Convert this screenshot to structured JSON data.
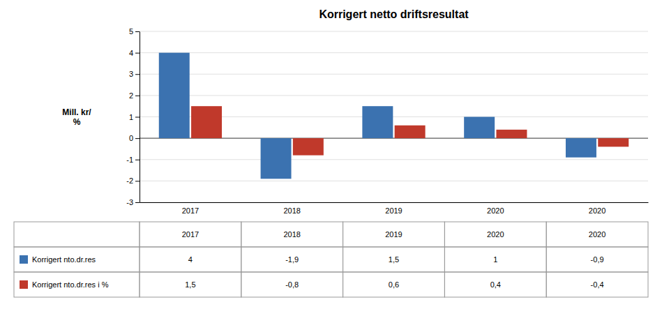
{
  "chart_data": {
    "type": "bar",
    "title": "Korrigert netto driftsresultat",
    "ylabel": "Mill. kr/\n%",
    "categories": [
      "2017",
      "2018",
      "2019",
      "2020",
      "2020"
    ],
    "series": [
      {
        "name": "Korrigert nto.dr.res",
        "color": "#3b72b0",
        "values": [
          4,
          -1.9,
          1.5,
          1,
          -0.9
        ],
        "value_labels": [
          "4",
          "-1,9",
          "1,5",
          "1",
          "-0,9"
        ]
      },
      {
        "name": "Korrigert nto.dr.res i %",
        "color": "#c0392b",
        "values": [
          1.5,
          -0.8,
          0.6,
          0.4,
          -0.4
        ],
        "value_labels": [
          "1,5",
          "-0,8",
          "0,6",
          "0,4",
          "-0,4"
        ]
      }
    ],
    "ylim": [
      -3,
      5
    ],
    "yticks": [
      -3,
      -2,
      -1,
      0,
      1,
      2,
      3,
      4,
      5
    ],
    "grid": true
  }
}
